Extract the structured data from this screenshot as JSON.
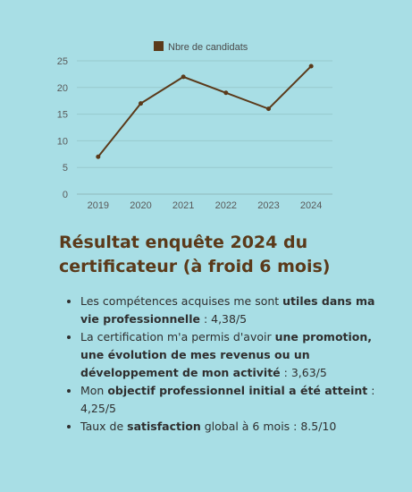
{
  "chart_data": {
    "type": "line",
    "categories": [
      "2019",
      "2020",
      "2021",
      "2022",
      "2023",
      "2024"
    ],
    "series": [
      {
        "name": "Nbre de candidats",
        "values": [
          7,
          17,
          22,
          19,
          16,
          24
        ],
        "color": "#5b3a1a"
      }
    ],
    "ylim": [
      0,
      25
    ],
    "yticks": [
      "0",
      "5",
      "10",
      "15",
      "20",
      "25"
    ],
    "grid": true,
    "legend": "top-center"
  },
  "headline": "Résultat enquête 2024 du certificateur (à froid 6 mois)",
  "bullets": [
    {
      "pre": "Les compétences acquises me sont ",
      "bold": "utiles dans ma vie professionnelle",
      "post": " : 4,38/5"
    },
    {
      "pre": "La certification m'a permis d'avoir ",
      "bold": "une promotion, une évolution de mes revenus ou un développement de mon activité",
      "post": " : 3,63/5"
    },
    {
      "pre": "Mon ",
      "bold": "objectif professionnel initial a été atteint",
      "post": " : 4,25/5"
    },
    {
      "pre": "Taux de ",
      "bold": "satisfaction",
      "post": " global à 6 mois : 8.5/10"
    }
  ]
}
